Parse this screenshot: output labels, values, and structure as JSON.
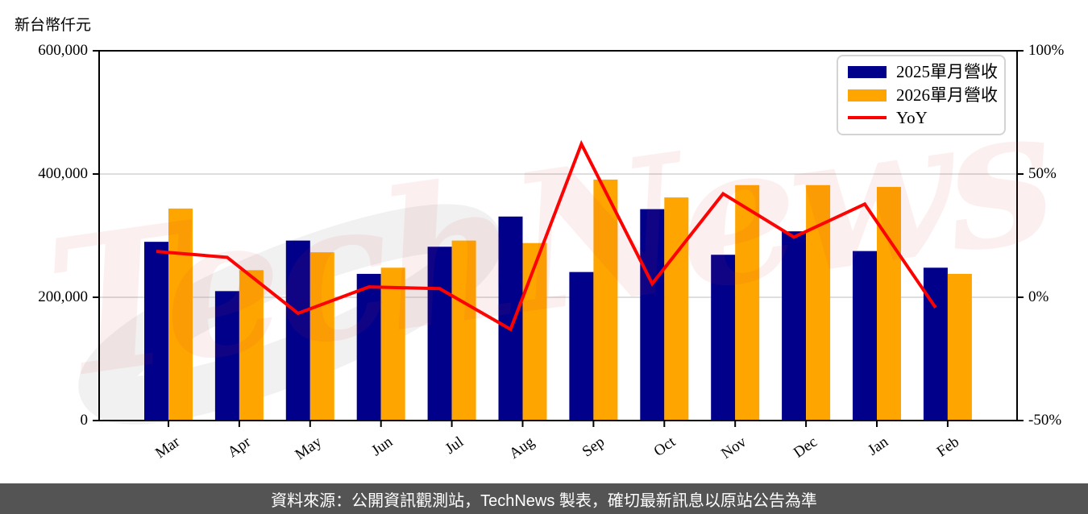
{
  "y_axis_title": "新台幣仟元",
  "watermark": {
    "text": "TechNews",
    "color": "rgba(205,55,55,0.08)",
    "swoosh_color": "rgba(120,120,120,0.10)"
  },
  "footer": {
    "text": "資料來源：公開資訊觀測站，TechNews 製表，確切最新訊息以原站公告為準",
    "background": "#545454",
    "text_color": "#ffffff"
  },
  "legend": {
    "items": [
      {
        "label": "2025單月營收",
        "color": "#00008B",
        "type": "bar"
      },
      {
        "label": "2026單月營收",
        "color": "#FFA500",
        "type": "bar"
      },
      {
        "label": "YoY",
        "color": "#FF0000",
        "type": "line"
      }
    ]
  },
  "chart_data": {
    "type": "bar",
    "title": "",
    "categories": [
      "Mar",
      "Apr",
      "May",
      "Jun",
      "Jul",
      "Aug",
      "Sep",
      "Oct",
      "Nov",
      "Dec",
      "Jan",
      "Feb"
    ],
    "series": [
      {
        "name": "2025單月營收",
        "type": "bar",
        "axis": "left",
        "color": "#00008B",
        "values": [
          290000,
          210000,
          292000,
          238000,
          282000,
          331000,
          241000,
          343000,
          269000,
          307000,
          275000,
          248000
        ]
      },
      {
        "name": "2026單月營收",
        "type": "bar",
        "axis": "left",
        "color": "#FFA500",
        "values": [
          344000,
          244000,
          273000,
          248000,
          292000,
          288000,
          391000,
          362000,
          382000,
          382000,
          379000,
          238000
        ]
      },
      {
        "name": "YoY",
        "type": "line",
        "axis": "right",
        "color": "#FF0000",
        "unit": "%",
        "values": [
          18.6,
          16.2,
          -6.5,
          4.2,
          3.5,
          -13.0,
          62.2,
          5.5,
          42.0,
          24.4,
          37.8,
          -4.2
        ]
      }
    ],
    "left_axis": {
      "label": "新台幣仟元",
      "min": 0,
      "max": 600000,
      "ticks": [
        {
          "value": 0,
          "label": "0"
        },
        {
          "value": 200000,
          "label": "200,000"
        },
        {
          "value": 400000,
          "label": "400,000"
        },
        {
          "value": 600000,
          "label": "600,000"
        }
      ]
    },
    "right_axis": {
      "label": "",
      "min": -50,
      "max": 100,
      "ticks": [
        {
          "value": -50,
          "label": "-50%"
        },
        {
          "value": 0,
          "label": "0%"
        },
        {
          "value": 50,
          "label": "50%"
        },
        {
          "value": 100,
          "label": "100%"
        }
      ]
    },
    "grid": true,
    "gridline_color": "#c9c9c9",
    "legend_position": "top-right"
  }
}
